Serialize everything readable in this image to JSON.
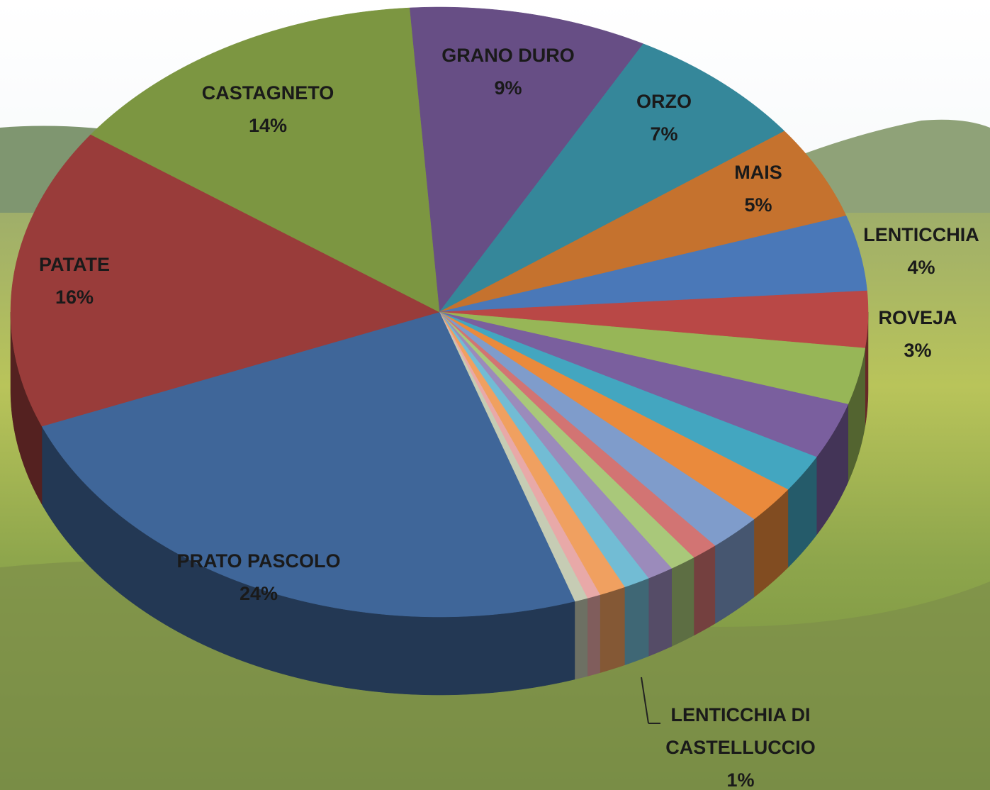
{
  "chart_data": {
    "type": "pie3d",
    "categories": [
      "GRANO DURO",
      "ORZO",
      "MAIS",
      "LENTICCHIA",
      "ROVEJA",
      null,
      null,
      null,
      null,
      null,
      null,
      null,
      null,
      null,
      "LENTICCHIA DI CASTELLUCCIO",
      null,
      null,
      "PRATO PASCOLO",
      "PATATE",
      "CASTAGNETO"
    ],
    "values": [
      9,
      7,
      5,
      4,
      3,
      3,
      3,
      2,
      2,
      2,
      1,
      1,
      1,
      1,
      1,
      0.5,
      0.5,
      24,
      16,
      14
    ],
    "value_labels": [
      "9%",
      "7%",
      "5%",
      "4%",
      "3%",
      null,
      null,
      null,
      null,
      null,
      null,
      null,
      null,
      null,
      "1%",
      null,
      null,
      "24%",
      "16%",
      "14%"
    ],
    "colors": [
      "#674e85",
      "#35879a",
      "#c5722e",
      "#4a78b8",
      "#b94846",
      "#97b657",
      "#7a5f9e",
      "#43a6c0",
      "#ea8a3c",
      "#7f9ccb",
      "#d27473",
      "#a9c87a",
      "#9b8bbb",
      "#72bcd4",
      "#f0a060",
      "#e8a9a8",
      "#c6ccb4",
      "#3f6699",
      "#993c3a",
      "#7c9641"
    ]
  }
}
